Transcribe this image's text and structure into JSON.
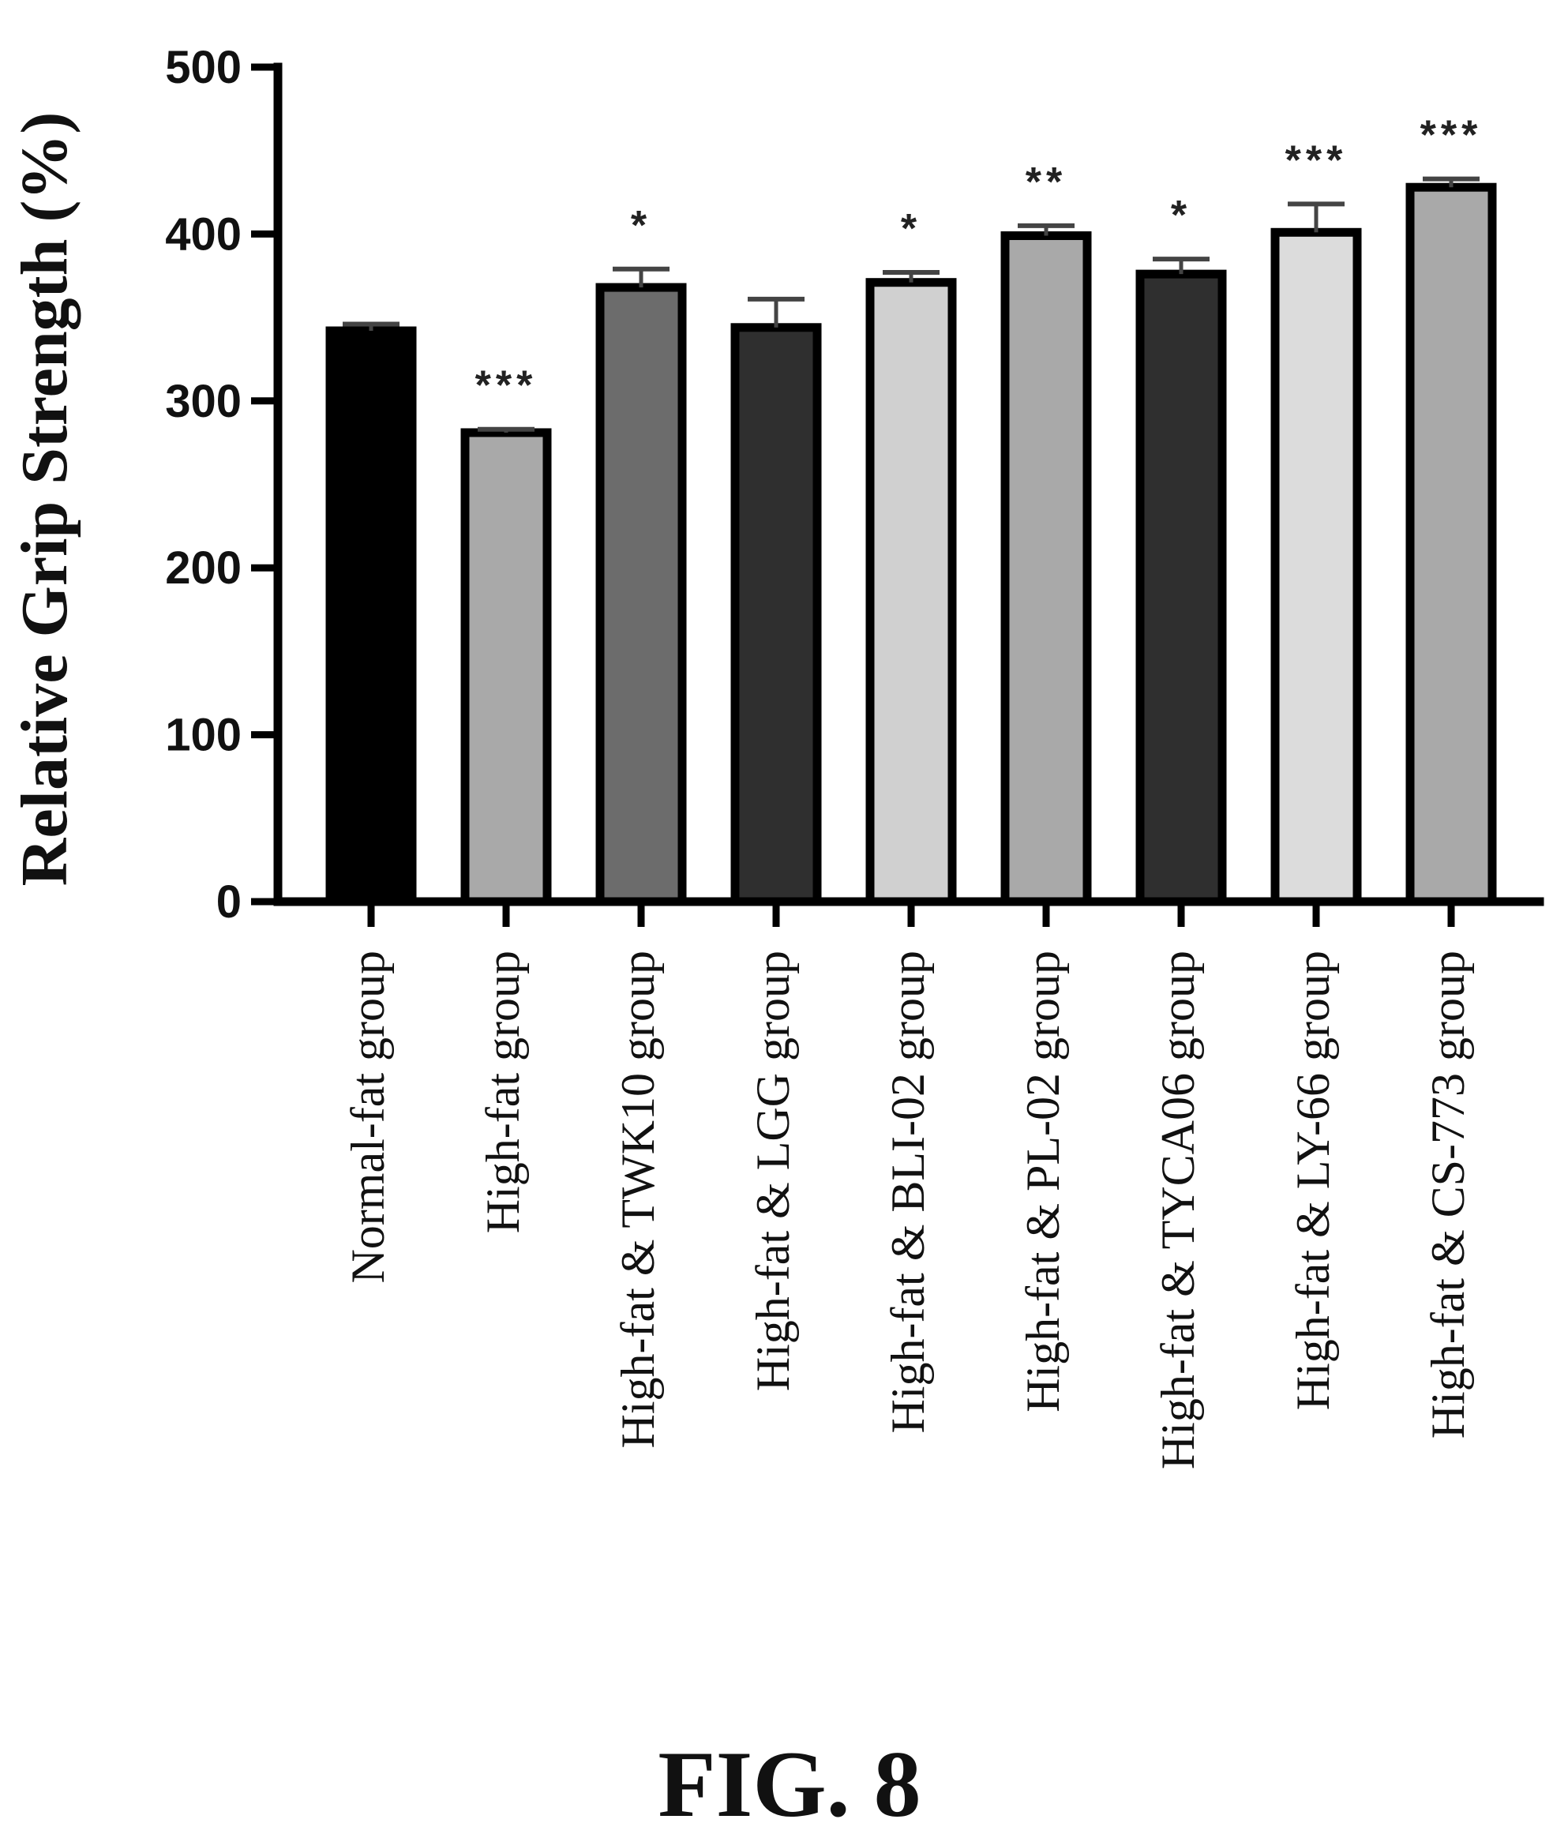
{
  "chart_data": {
    "type": "bar",
    "ylabel": "Relative Grip Strength (%)",
    "ylim": [
      0,
      500
    ],
    "yticks": [
      0,
      100,
      200,
      300,
      400,
      500
    ],
    "categories": [
      "Normal-fat group",
      "High-fat group",
      "High-fat & TWK10 group",
      "High-fat & LGG group",
      "High-fat & BLI-02 group",
      "High-fat & PL-02 group",
      "High-fat & TYCA06 group",
      "High-fat & LY-66 group",
      "High-fat & CS-773 group"
    ],
    "values": [
      342,
      281,
      368,
      344,
      371,
      399,
      376,
      401,
      428
    ],
    "errors": [
      4,
      2,
      11,
      17,
      6,
      6,
      9,
      17,
      5
    ],
    "significance": [
      "",
      "***",
      "*",
      "",
      "*",
      "**",
      "*",
      "***",
      "***"
    ],
    "colors": [
      "#000000",
      "#a9a9a9",
      "#6c6c6c",
      "#2f2f2f",
      "#d0d0d0",
      "#a9a9a9",
      "#2f2f2f",
      "#dcdcdc",
      "#a9a9a9"
    ],
    "grid": false,
    "legend": "none"
  },
  "caption": "FIG. 8"
}
